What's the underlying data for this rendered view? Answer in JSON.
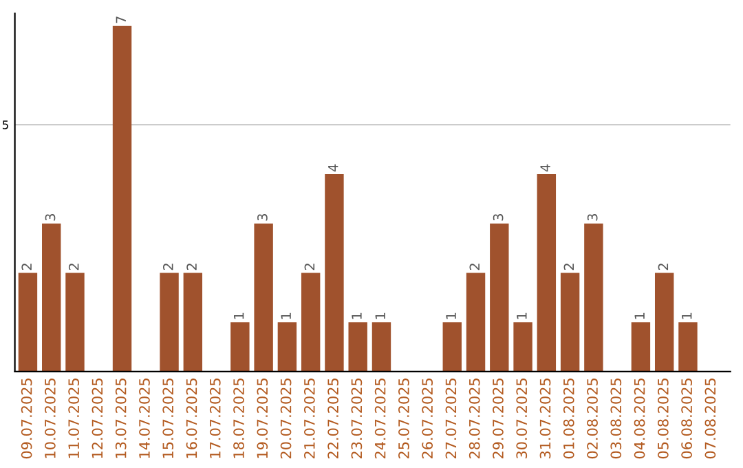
{
  "chart_data": {
    "type": "bar",
    "categories": [
      "09.07.2025",
      "10.07.2025",
      "11.07.2025",
      "12.07.2025",
      "13.07.2025",
      "14.07.2025",
      "15.07.2025",
      "16.07.2025",
      "17.07.2025",
      "18.07.2025",
      "19.07.2025",
      "20.07.2025",
      "21.07.2025",
      "22.07.2025",
      "23.07.2025",
      "24.07.2025",
      "25.07.2025",
      "26.07.2025",
      "27.07.2025",
      "28.07.2025",
      "29.07.2025",
      "30.07.2025",
      "31.07.2025",
      "01.08.2025",
      "02.08.2025",
      "03.08.2025",
      "04.08.2025",
      "05.08.2025",
      "06.08.2025",
      "07.08.2025"
    ],
    "values": [
      2,
      3,
      2,
      0,
      7,
      0,
      2,
      2,
      0,
      1,
      3,
      1,
      2,
      4,
      1,
      1,
      0,
      0,
      1,
      2,
      3,
      1,
      4,
      2,
      3,
      0,
      1,
      2,
      1,
      0
    ],
    "value_labels": [
      "2",
      "3",
      "2",
      null,
      "7",
      null,
      "2",
      "2",
      null,
      "1",
      "3",
      "1",
      "2",
      "4",
      "1",
      "1",
      null,
      null,
      "1",
      "2",
      "3",
      "1",
      "4",
      "2",
      "3",
      null,
      "1",
      "2",
      "1",
      null
    ],
    "color": "#a0522d",
    "ylim": [
      0,
      7.25
    ],
    "yticks": [
      5
    ],
    "grid": "y"
  }
}
